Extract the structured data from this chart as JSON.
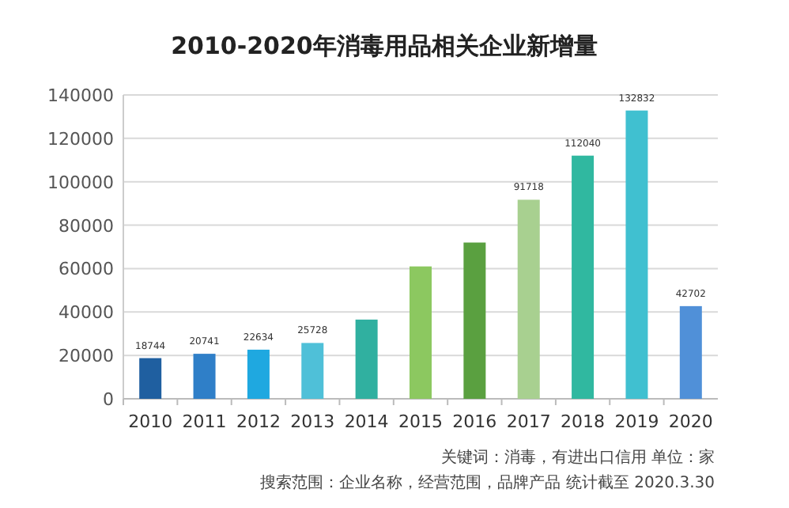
{
  "chart_data": {
    "type": "bar",
    "title": "2010-2020年消毒用品相关企业新增量",
    "categories": [
      "2010",
      "2011",
      "2012",
      "2013",
      "2014",
      "2015",
      "2016",
      "2017",
      "2018",
      "2019",
      "2020"
    ],
    "values": [
      18744,
      20741,
      22634,
      25728,
      36500,
      61000,
      72000,
      91718,
      112040,
      132832,
      42702
    ],
    "colors": [
      "#1f5fa0",
      "#2f7fc8",
      "#1fa8e0",
      "#4fc0d8",
      "#30b0a0",
      "#8cc860",
      "#5aa040",
      "#a8d090",
      "#30b8a0",
      "#40c0d0",
      "#5090d8"
    ],
    "value_labels": [
      "18744",
      "20741",
      "22634",
      "25728",
      null,
      null,
      null,
      "91718",
      "112040",
      "132832",
      "42702"
    ],
    "ylim": [
      0,
      140000
    ],
    "yticks": [
      0,
      20000,
      40000,
      60000,
      80000,
      100000,
      120000,
      140000
    ],
    "grid": "y",
    "annotations": [
      "关键词：消毒，有进出口信用  单位：家",
      "搜索范围：企业名称，经营范围，品牌产品  统计截至 2020.3.30"
    ]
  }
}
